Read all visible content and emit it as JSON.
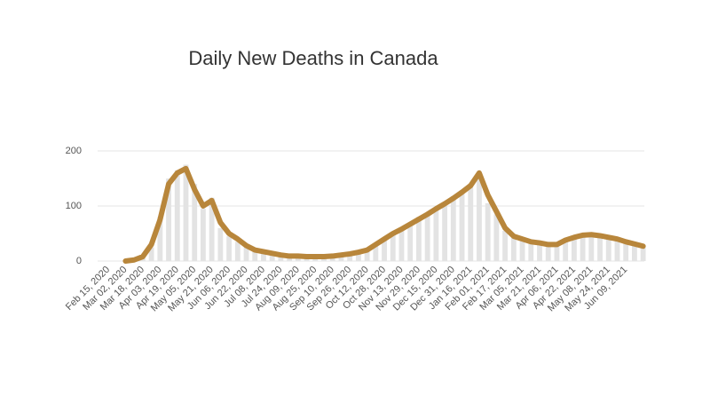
{
  "chart_data": {
    "type": "line",
    "title": "Daily New Deaths in Canada",
    "categories": [
      "Feb 15, 2020",
      null,
      "Mar 02, 2020",
      null,
      "Mar 18, 2020",
      null,
      "Apr 03, 2020",
      null,
      "Apr 19, 2020",
      null,
      "May 05, 2020",
      null,
      "May 21, 2020",
      null,
      "Jun 06, 2020",
      null,
      "Jun 22, 2020",
      null,
      "Jul 08, 2020",
      null,
      "Jul 24, 2020",
      null,
      "Aug 09, 2020",
      null,
      "Aug 25, 2020",
      null,
      "Sep 10, 2020",
      null,
      "Sep 26, 2020",
      null,
      "Oct 12, 2020",
      null,
      "Oct 28, 2020",
      null,
      "Nov 13, 2020",
      null,
      "Nov 29, 2020",
      null,
      "Dec 15, 2020",
      null,
      "Dec 31, 2020",
      null,
      "Jan 16, 2021",
      null,
      "Feb 01, 2021",
      null,
      "Feb 17, 2021",
      null,
      "Mar 05, 2021",
      null,
      "Mar 21, 2021",
      null,
      "Apr 06, 2021",
      null,
      "Apr 22, 2021",
      null,
      "May 08, 2021",
      null,
      "May 24, 2021",
      null,
      "Jun 09, 2021",
      null,
      null
    ],
    "series": [
      {
        "type": "bar",
        "color": "#e3e3e3",
        "values": [
          0,
          0,
          0,
          1,
          6,
          25,
          80,
          150,
          165,
          175,
          140,
          95,
          115,
          60,
          45,
          35,
          25,
          18,
          15,
          12,
          10,
          8,
          7,
          7,
          6,
          7,
          8,
          10,
          12,
          15,
          18,
          28,
          42,
          48,
          60,
          65,
          80,
          84,
          97,
          100,
          118,
          122,
          140,
          150,
          105,
          85,
          55,
          42,
          38,
          33,
          32,
          28,
          27,
          36,
          42,
          45,
          50,
          44,
          42,
          38,
          33,
          28,
          25
        ]
      },
      {
        "color": "#b8863b",
        "values": [
          null,
          null,
          0,
          2,
          8,
          30,
          75,
          140,
          160,
          168,
          130,
          100,
          110,
          70,
          50,
          40,
          28,
          20,
          17,
          14,
          11,
          9,
          9,
          8,
          8,
          8,
          9,
          11,
          13,
          16,
          20,
          30,
          40,
          50,
          58,
          67,
          76,
          85,
          95,
          104,
          114,
          125,
          137,
          160,
          120,
          90,
          60,
          45,
          40,
          35,
          33,
          30,
          30,
          38,
          43,
          47,
          48,
          46,
          43,
          40,
          35,
          31,
          27
        ]
      }
    ],
    "ylim": [
      0,
      200
    ],
    "yticks": [
      0,
      100,
      200
    ],
    "grid": true
  }
}
